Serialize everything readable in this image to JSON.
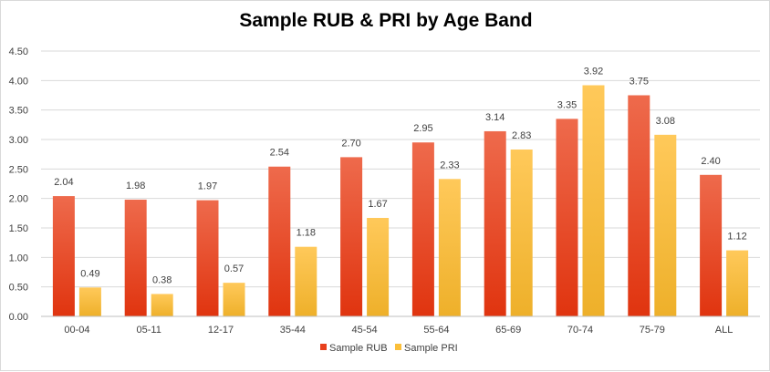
{
  "chart_data": {
    "type": "bar",
    "title": "Sample RUB & PRI by Age Band",
    "xlabel": "",
    "ylabel": "",
    "ylim": [
      0,
      4.5
    ],
    "yticks": [
      "0.00",
      "0.50",
      "1.00",
      "1.50",
      "2.00",
      "2.50",
      "3.00",
      "3.50",
      "4.00",
      "4.50"
    ],
    "grid": true,
    "legend_position": "bottom",
    "categories": [
      "00-04",
      "05-11",
      "12-17",
      "35-44",
      "45-54",
      "55-64",
      "65-69",
      "70-74",
      "75-79",
      "ALL"
    ],
    "series": [
      {
        "name": "Sample RUB",
        "color": "#e8401c",
        "values": [
          2.04,
          1.98,
          1.97,
          2.54,
          2.7,
          2.95,
          3.14,
          3.35,
          3.75,
          2.4
        ],
        "labels": [
          "2.04",
          "1.98",
          "1.97",
          "2.54",
          "2.70",
          "2.95",
          "3.14",
          "3.35",
          "3.75",
          "2.40"
        ]
      },
      {
        "name": "Sample PRI",
        "color": "#fbbf3a",
        "values": [
          0.49,
          0.38,
          0.57,
          1.18,
          1.67,
          2.33,
          2.83,
          3.92,
          3.08,
          1.12
        ],
        "labels": [
          "0.49",
          "0.38",
          "0.57",
          "1.18",
          "1.67",
          "2.33",
          "2.83",
          "3.92",
          "3.08",
          "1.12"
        ]
      }
    ]
  }
}
